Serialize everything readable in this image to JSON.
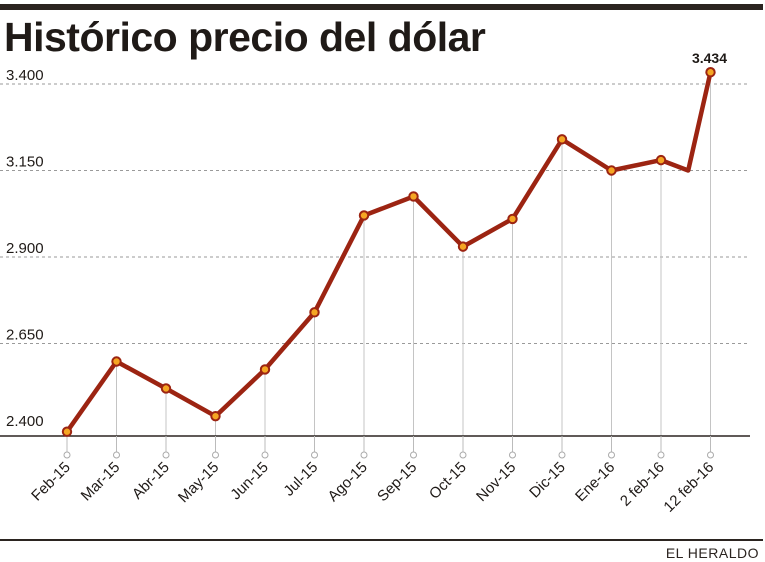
{
  "header": {
    "title": "Histórico precio del dólar"
  },
  "footer": {
    "source": "EL HERALDO"
  },
  "colors": {
    "line": "#9c2412",
    "marker_fill": "#f5a623",
    "grid": "#9a9a9a",
    "axis": "#2b2420"
  },
  "chart_data": {
    "type": "line",
    "title": "Histórico precio del dólar",
    "xlabel": "",
    "ylabel": "",
    "categories": [
      "Feb-15",
      "Mar-15",
      "Abr-15",
      "May-15",
      "Jun-15",
      "Jul-15",
      "Ago-15",
      "Sep-15",
      "Oct-15",
      "Nov-15",
      "Dic-15",
      "Ene-16",
      "2 feb-16",
      "12 feb-16"
    ],
    "ylim": [
      2400,
      3434
    ],
    "yticks": [
      2400,
      2650,
      2900,
      3150,
      3400
    ],
    "ytick_labels": [
      "2.400",
      "2.650",
      "2.900",
      "3.150",
      "3.400"
    ],
    "grid": true,
    "points": [
      {
        "x": 0,
        "y": 2395,
        "marker": true
      },
      {
        "x": 1,
        "y": 2598,
        "marker": true
      },
      {
        "x": 2,
        "y": 2520,
        "marker": true
      },
      {
        "x": 3,
        "y": 2440,
        "marker": true
      },
      {
        "x": 4,
        "y": 2575,
        "marker": true
      },
      {
        "x": 5,
        "y": 2740,
        "marker": true
      },
      {
        "x": 6,
        "y": 3020,
        "marker": true
      },
      {
        "x": 7,
        "y": 3075,
        "marker": true
      },
      {
        "x": 8,
        "y": 2930,
        "marker": true
      },
      {
        "x": 9,
        "y": 3010,
        "marker": true
      },
      {
        "x": 10,
        "y": 3240,
        "marker": true
      },
      {
        "x": 11,
        "y": 3150,
        "marker": true
      },
      {
        "x": 12,
        "y": 3180,
        "marker": true
      },
      {
        "x": 12.55,
        "y": 3150,
        "marker": false
      },
      {
        "x": 13,
        "y": 3434,
        "marker": true
      }
    ],
    "annotations": [
      {
        "x": 13,
        "y": 3434,
        "text": "3.434"
      }
    ]
  }
}
